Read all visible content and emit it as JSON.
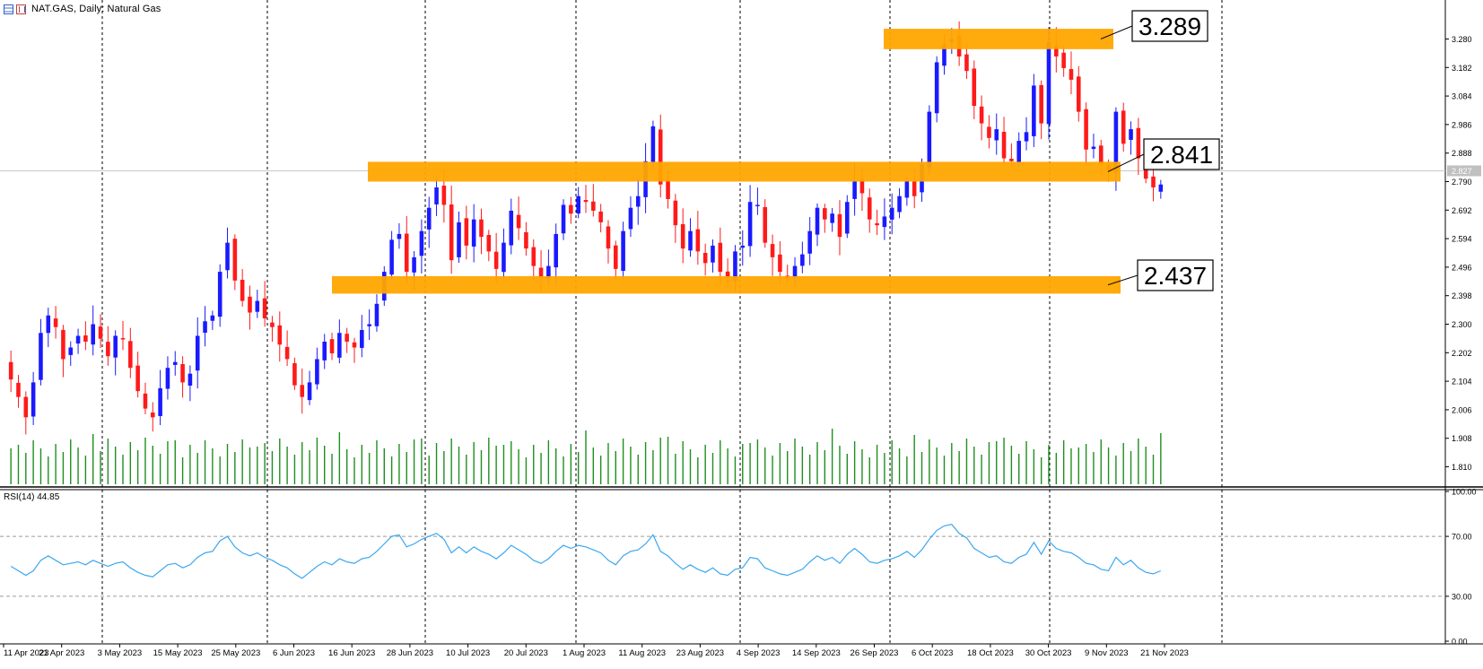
{
  "window": {
    "symbol_title": "NAT.GAS, Daily:  Natural Gas",
    "icons": [
      "chart-bars-icon",
      "indicator-icon"
    ]
  },
  "colors": {
    "bull_candle": "#1a1aff",
    "bear_candle": "#ff1a1a",
    "volume": "#1e8f1e",
    "zone": "#ffa500",
    "rsi_line": "#3ba7f0",
    "grid_separator": "#000000"
  },
  "chart_data": [
    {
      "type": "candlestick",
      "title": "NAT.GAS, Daily:  Natural Gas",
      "ylim": [
        1.75,
        3.34
      ],
      "y_ticks": [
        "3.280",
        "3.182",
        "3.084",
        "2.986",
        "2.888",
        "2.790",
        "2.692",
        "2.594",
        "2.496",
        "2.398",
        "2.300",
        "2.202",
        "2.104",
        "2.006",
        "1.908",
        "1.810"
      ],
      "x_ticks": [
        "11 Apr 2023",
        "21 Apr 2023",
        "3 May 2023",
        "15 May 2023",
        "25 May 2023",
        "6 Jun 2023",
        "16 Jun 2023",
        "28 Jun 2023",
        "10 Jul 2023",
        "20 Jul 2023",
        "1 Aug 2023",
        "11 Aug 2023",
        "23 Aug 2023",
        "4 Sep 2023",
        "14 Sep 2023",
        "26 Sep 2023",
        "6 Oct 2023",
        "18 Oct 2023",
        "30 Oct 2023",
        "9 Nov 2023",
        "21 Nov 2023"
      ],
      "current_price": "2.827",
      "close_series": [
        2.11,
        2.05,
        1.98,
        2.1,
        2.27,
        2.33,
        2.29,
        2.18,
        2.22,
        2.26,
        2.24,
        2.3,
        2.25,
        2.19,
        2.26,
        2.25,
        2.15,
        2.07,
        2.01,
        1.98,
        2.08,
        2.15,
        2.17,
        2.1,
        2.13,
        2.26,
        2.31,
        2.33,
        2.48,
        2.58,
        2.45,
        2.38,
        2.34,
        2.38,
        2.32,
        2.29,
        2.23,
        2.18,
        2.09,
        2.05,
        2.1,
        2.18,
        2.24,
        2.2,
        2.27,
        2.24,
        2.22,
        2.28,
        2.3,
        2.37,
        2.48,
        2.59,
        2.61,
        2.48,
        2.53,
        2.62,
        2.7,
        2.77,
        2.71,
        2.52,
        2.65,
        2.57,
        2.66,
        2.6,
        2.55,
        2.49,
        2.58,
        2.69,
        2.63,
        2.56,
        2.5,
        2.46,
        2.5,
        2.61,
        2.71,
        2.68,
        2.74,
        2.72,
        2.69,
        2.65,
        2.56,
        2.49,
        2.62,
        2.7,
        2.74,
        2.86,
        2.98,
        2.78,
        2.73,
        2.64,
        2.56,
        2.62,
        2.55,
        2.51,
        2.57,
        2.48,
        2.46,
        2.55,
        2.57,
        2.72,
        2.71,
        2.58,
        2.53,
        2.48,
        2.46,
        2.5,
        2.54,
        2.62,
        2.7,
        2.66,
        2.68,
        2.6,
        2.72,
        2.79,
        2.75,
        2.66,
        2.64,
        2.67,
        2.7,
        2.74,
        2.79,
        2.74,
        2.85,
        3.03,
        3.2,
        3.26,
        3.28,
        3.22,
        3.17,
        3.05,
        2.99,
        2.94,
        2.97,
        2.87,
        2.86,
        2.93,
        2.96,
        3.12,
        2.99,
        3.27,
        3.22,
        3.18,
        3.14,
        3.03,
        2.9,
        2.91,
        2.85,
        2.83,
        3.03,
        2.92,
        2.97,
        2.87,
        2.8,
        2.77,
        2.78
      ],
      "volume_note": "volume histogram shown under price panel",
      "zones": [
        {
          "name": "upper-resistance",
          "label": "3.289"
        },
        {
          "name": "middle-resistance",
          "label": "2.841"
        },
        {
          "name": "support",
          "label": "2.437"
        }
      ]
    },
    {
      "type": "line",
      "title": "RSI(14) 44.85",
      "ylim": [
        0,
        100
      ],
      "y_ticks": [
        "100.00",
        "70.00",
        "30.00",
        "0.00"
      ],
      "levels": [
        70,
        30
      ],
      "series": [
        {
          "name": "RSI(14)",
          "values": [
            50,
            47,
            44,
            47,
            54,
            57,
            54,
            51,
            52,
            53,
            51,
            54,
            52,
            50,
            52,
            53,
            49,
            46,
            44,
            43,
            47,
            51,
            52,
            49,
            51,
            56,
            59,
            60,
            67,
            70,
            63,
            59,
            57,
            59,
            56,
            54,
            51,
            49,
            45,
            42,
            46,
            50,
            53,
            51,
            55,
            53,
            52,
            55,
            56,
            60,
            65,
            70,
            71,
            63,
            65,
            68,
            70,
            72,
            68,
            59,
            63,
            59,
            63,
            60,
            58,
            55,
            59,
            64,
            61,
            58,
            54,
            52,
            55,
            60,
            64,
            62,
            64,
            63,
            61,
            59,
            54,
            51,
            57,
            60,
            61,
            65,
            71,
            60,
            57,
            52,
            48,
            51,
            48,
            46,
            49,
            45,
            44,
            48,
            49,
            56,
            55,
            49,
            47,
            45,
            44,
            46,
            48,
            53,
            57,
            54,
            56,
            52,
            58,
            62,
            58,
            53,
            52,
            54,
            55,
            57,
            60,
            56,
            61,
            68,
            74,
            77,
            78,
            72,
            69,
            62,
            59,
            56,
            57,
            53,
            52,
            56,
            58,
            66,
            58,
            67,
            62,
            60,
            59,
            56,
            52,
            51,
            48,
            47,
            56,
            51,
            54,
            49,
            46,
            45,
            47
          ]
        }
      ]
    }
  ]
}
